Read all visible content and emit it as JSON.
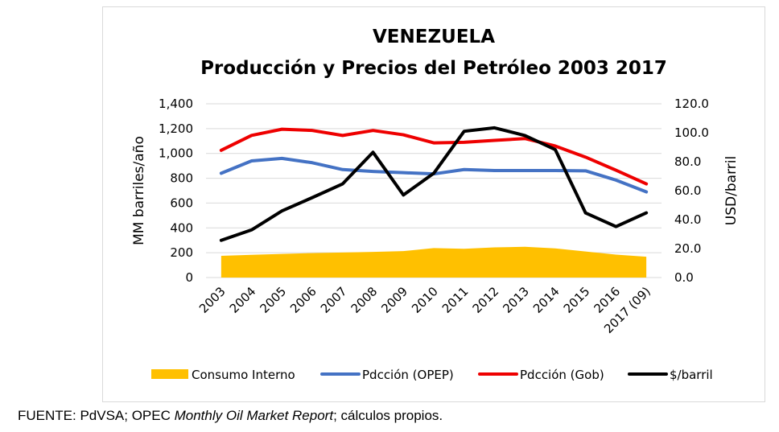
{
  "chart_data": {
    "type": "combo",
    "title": "VENEZUELA",
    "subtitle": "Producción y Precios del Petróleo 2003 2017",
    "ylabel": "MM barriles/año",
    "y2label": "USD/barril",
    "ylim": [
      0,
      1400
    ],
    "y2lim": [
      0,
      120
    ],
    "yticks": [
      "0",
      "200",
      "400",
      "600",
      "800",
      "1,000",
      "1,200",
      "1,400"
    ],
    "y2ticks": [
      "0.0",
      "20.0",
      "40.0",
      "60.0",
      "80.0",
      "100.0",
      "120.0"
    ],
    "categories": [
      "2003",
      "2004",
      "2005",
      "2006",
      "2007",
      "2008",
      "2009",
      "2010",
      "2011",
      "2012",
      "2013",
      "2014",
      "2015",
      "2016",
      "2017 (09)"
    ],
    "series": [
      {
        "name": "Consumo Interno",
        "kind": "area",
        "axis": "left",
        "color": "#FFC000",
        "values": [
          175,
          183,
          190,
          197,
          202,
          207,
          213,
          237,
          232,
          243,
          248,
          235,
          210,
          185,
          168
        ]
      },
      {
        "name": "Pdcción (OPEP)",
        "kind": "line",
        "axis": "left",
        "color": "#4472C4",
        "values": [
          840,
          940,
          960,
          925,
          870,
          855,
          845,
          835,
          870,
          862,
          862,
          862,
          860,
          785,
          690
        ]
      },
      {
        "name": "Pdcción (Gob)",
        "kind": "line",
        "axis": "left",
        "color": "#EE0000",
        "values": [
          1025,
          1145,
          1195,
          1185,
          1145,
          1185,
          1150,
          1085,
          1090,
          1105,
          1120,
          1060,
          970,
          865,
          755
        ]
      },
      {
        "name": "$/barril",
        "kind": "line",
        "axis": "right",
        "color": "#000000",
        "values": [
          25.7,
          32.9,
          46.0,
          55.2,
          64.7,
          86.5,
          57.0,
          72.0,
          101.0,
          103.4,
          98.1,
          88.4,
          44.6,
          35.2,
          44.7
        ]
      }
    ],
    "legend_position": "bottom",
    "grid": true
  },
  "source": {
    "prefix": "FUENTE: PdVSA; OPEC ",
    "italic": "Monthly Oil Market Report",
    "suffix": "; cálculos propios."
  }
}
